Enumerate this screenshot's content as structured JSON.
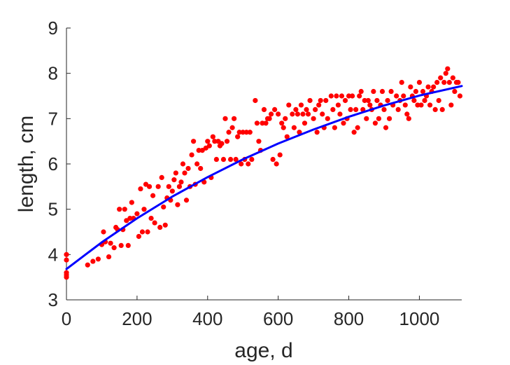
{
  "chart_data": {
    "type": "scatter",
    "title": "",
    "xlabel": "age, d",
    "ylabel": "length, cm",
    "xlim": [
      0,
      1120
    ],
    "ylim": [
      3,
      9
    ],
    "xticks": [
      0,
      200,
      400,
      600,
      800,
      1000
    ],
    "yticks": [
      3,
      4,
      5,
      6,
      7,
      8,
      9
    ],
    "xtick_labels": [
      "0",
      "200",
      "400",
      "600",
      "800",
      "1000"
    ],
    "ytick_labels": [
      "3",
      "4",
      "5",
      "6",
      "7",
      "8",
      "9"
    ],
    "grid": false,
    "legend": "none",
    "series": [
      {
        "kind": "scatter",
        "color": "#ff0000",
        "points": [
          [
            0,
            4.0
          ],
          [
            0,
            3.88
          ],
          [
            0,
            3.6
          ],
          [
            0,
            3.5
          ],
          [
            0,
            3.55
          ],
          [
            60,
            3.77
          ],
          [
            75,
            3.85
          ],
          [
            90,
            3.9
          ],
          [
            100,
            4.22
          ],
          [
            105,
            4.5
          ],
          [
            110,
            4.28
          ],
          [
            120,
            3.95
          ],
          [
            125,
            4.25
          ],
          [
            135,
            4.15
          ],
          [
            140,
            4.6
          ],
          [
            145,
            4.55
          ],
          [
            150,
            5.0
          ],
          [
            155,
            4.2
          ],
          [
            160,
            4.55
          ],
          [
            165,
            5.0
          ],
          [
            170,
            4.75
          ],
          [
            175,
            4.2
          ],
          [
            180,
            4.8
          ],
          [
            185,
            5.15
          ],
          [
            190,
            4.8
          ],
          [
            200,
            4.9
          ],
          [
            205,
            4.4
          ],
          [
            210,
            5.45
          ],
          [
            215,
            4.5
          ],
          [
            220,
            5.0
          ],
          [
            225,
            5.55
          ],
          [
            230,
            4.5
          ],
          [
            235,
            5.5
          ],
          [
            240,
            4.8
          ],
          [
            245,
            5.3
          ],
          [
            250,
            4.7
          ],
          [
            260,
            5.5
          ],
          [
            265,
            4.6
          ],
          [
            270,
            5.7
          ],
          [
            275,
            5.05
          ],
          [
            280,
            4.65
          ],
          [
            285,
            5.25
          ],
          [
            290,
            5.5
          ],
          [
            295,
            5.2
          ],
          [
            300,
            5.4
          ],
          [
            305,
            5.65
          ],
          [
            310,
            5.8
          ],
          [
            315,
            5.1
          ],
          [
            320,
            5.5
          ],
          [
            325,
            5.6
          ],
          [
            330,
            6.0
          ],
          [
            335,
            5.8
          ],
          [
            340,
            5.2
          ],
          [
            345,
            5.9
          ],
          [
            350,
            5.5
          ],
          [
            355,
            6.2
          ],
          [
            360,
            6.5
          ],
          [
            365,
            5.55
          ],
          [
            370,
            6.0
          ],
          [
            375,
            6.3
          ],
          [
            380,
            5.9
          ],
          [
            385,
            6.3
          ],
          [
            390,
            5.6
          ],
          [
            395,
            6.35
          ],
          [
            400,
            6.5
          ],
          [
            405,
            6.4
          ],
          [
            410,
            5.7
          ],
          [
            415,
            6.6
          ],
          [
            420,
            6.5
          ],
          [
            425,
            6.1
          ],
          [
            430,
            6.5
          ],
          [
            435,
            6.4
          ],
          [
            440,
            6.45
          ],
          [
            445,
            6.1
          ],
          [
            450,
            7.0
          ],
          [
            455,
            6.5
          ],
          [
            460,
            6.7
          ],
          [
            465,
            6.1
          ],
          [
            470,
            6.8
          ],
          [
            475,
            7.0
          ],
          [
            480,
            6.1
          ],
          [
            485,
            6.6
          ],
          [
            490,
            6.7
          ],
          [
            495,
            6.0
          ],
          [
            500,
            6.7
          ],
          [
            505,
            6.1
          ],
          [
            510,
            6.7
          ],
          [
            515,
            6.0
          ],
          [
            520,
            6.7
          ],
          [
            525,
            6.1
          ],
          [
            535,
            7.4
          ],
          [
            540,
            6.9
          ],
          [
            545,
            6.5
          ],
          [
            550,
            6.3
          ],
          [
            555,
            6.9
          ],
          [
            560,
            7.2
          ],
          [
            565,
            6.9
          ],
          [
            570,
            7.0
          ],
          [
            575,
            7.0
          ],
          [
            580,
            7.1
          ],
          [
            585,
            6.1
          ],
          [
            590,
            7.2
          ],
          [
            595,
            6.0
          ],
          [
            600,
            7.1
          ],
          [
            605,
            6.2
          ],
          [
            610,
            6.9
          ],
          [
            615,
            6.8
          ],
          [
            620,
            7.0
          ],
          [
            625,
            6.6
          ],
          [
            630,
            7.3
          ],
          [
            640,
            7.1
          ],
          [
            645,
            6.8
          ],
          [
            650,
            7.2
          ],
          [
            655,
            7.1
          ],
          [
            660,
            6.7
          ],
          [
            665,
            7.3
          ],
          [
            670,
            7.1
          ],
          [
            675,
            6.9
          ],
          [
            680,
            7.2
          ],
          [
            685,
            7.1
          ],
          [
            690,
            7.4
          ],
          [
            700,
            7.0
          ],
          [
            705,
            7.2
          ],
          [
            710,
            6.7
          ],
          [
            715,
            7.3
          ],
          [
            720,
            7.4
          ],
          [
            725,
            7.1
          ],
          [
            730,
            6.8
          ],
          [
            735,
            7.4
          ],
          [
            740,
            7.0
          ],
          [
            750,
            7.5
          ],
          [
            755,
            7.2
          ],
          [
            760,
            6.8
          ],
          [
            765,
            7.5
          ],
          [
            770,
            7.3
          ],
          [
            775,
            7.1
          ],
          [
            780,
            7.5
          ],
          [
            785,
            6.9
          ],
          [
            790,
            7.4
          ],
          [
            795,
            7.0
          ],
          [
            800,
            7.5
          ],
          [
            805,
            7.2
          ],
          [
            810,
            7.5
          ],
          [
            815,
            6.7
          ],
          [
            820,
            7.2
          ],
          [
            825,
            6.8
          ],
          [
            830,
            7.5
          ],
          [
            835,
            7.6
          ],
          [
            840,
            7.2
          ],
          [
            845,
            7.4
          ],
          [
            850,
            7.0
          ],
          [
            855,
            7.4
          ],
          [
            860,
            7.3
          ],
          [
            865,
            7.2
          ],
          [
            870,
            7.6
          ],
          [
            875,
            6.9
          ],
          [
            880,
            7.4
          ],
          [
            885,
            7.0
          ],
          [
            890,
            7.3
          ],
          [
            895,
            7.6
          ],
          [
            900,
            7.2
          ],
          [
            905,
            6.8
          ],
          [
            910,
            7.4
          ],
          [
            915,
            7.0
          ],
          [
            920,
            7.6
          ],
          [
            925,
            7.3
          ],
          [
            935,
            7.5
          ],
          [
            940,
            7.2
          ],
          [
            945,
            7.4
          ],
          [
            950,
            7.8
          ],
          [
            955,
            7.5
          ],
          [
            960,
            7.3
          ],
          [
            965,
            7.1
          ],
          [
            970,
            7.0
          ],
          [
            975,
            7.7
          ],
          [
            980,
            7.5
          ],
          [
            985,
            7.4
          ],
          [
            990,
            7.6
          ],
          [
            995,
            7.3
          ],
          [
            1000,
            7.8
          ],
          [
            1005,
            7.3
          ],
          [
            1010,
            7.6
          ],
          [
            1015,
            7.4
          ],
          [
            1020,
            7.5
          ],
          [
            1025,
            7.7
          ],
          [
            1030,
            7.3
          ],
          [
            1035,
            7.6
          ],
          [
            1040,
            7.7
          ],
          [
            1045,
            7.2
          ],
          [
            1050,
            7.8
          ],
          [
            1055,
            7.4
          ],
          [
            1060,
            7.9
          ],
          [
            1065,
            7.2
          ],
          [
            1070,
            7.8
          ],
          [
            1075,
            8.0
          ],
          [
            1080,
            8.1
          ],
          [
            1085,
            7.8
          ],
          [
            1090,
            7.3
          ],
          [
            1095,
            7.9
          ],
          [
            1100,
            7.6
          ],
          [
            1105,
            7.8
          ],
          [
            1110,
            7.8
          ],
          [
            1115,
            7.5
          ]
        ]
      },
      {
        "kind": "line",
        "color": "#0000ff",
        "points": [
          [
            0,
            3.68
          ],
          [
            100,
            4.27
          ],
          [
            200,
            4.8
          ],
          [
            300,
            5.28
          ],
          [
            400,
            5.71
          ],
          [
            500,
            6.1
          ],
          [
            600,
            6.45
          ],
          [
            700,
            6.76
          ],
          [
            800,
            7.04
          ],
          [
            900,
            7.29
          ],
          [
            1000,
            7.51
          ],
          [
            1120,
            7.72
          ]
        ]
      }
    ]
  }
}
